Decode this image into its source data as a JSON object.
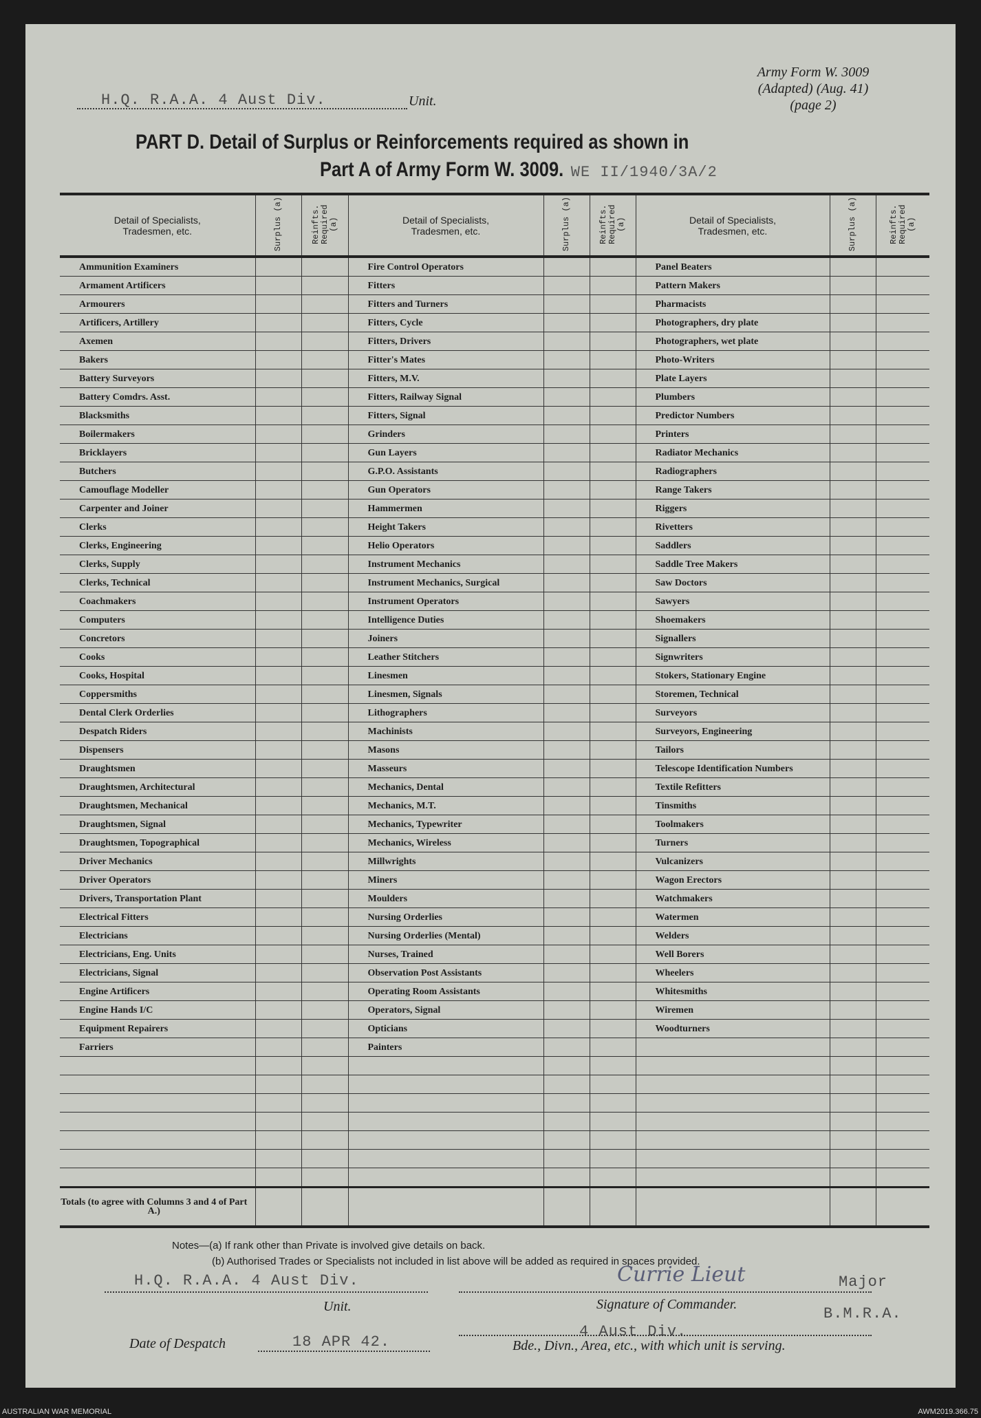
{
  "header": {
    "unit_typed": "H.Q. R.A.A. 4 Aust Div.",
    "unit_label": "Unit.",
    "form_ref_line1": "Army Form W. 3009",
    "form_ref_line2": "(Adapted) (Aug. 41)",
    "form_ref_line3": "(page 2)",
    "title_line1": "PART D.  Detail of Surplus or Reinforcements required as shown in",
    "title_line2": "Part A of Army Form W. 3009.",
    "title_typed": "WE II/1940/3A/2"
  },
  "table": {
    "col_detail": "Detail of Specialists, Tradesmen, etc.",
    "col_surplus": "Surplus (a)",
    "col_reinfts": "Reinfts. Required (a)",
    "columns": [
      [
        "Ammunition Examiners",
        "Armament Artificers",
        "Armourers",
        "Artificers, Artillery",
        "Axemen",
        "Bakers",
        "Battery Surveyors",
        "Battery Comdrs. Asst.",
        "Blacksmiths",
        "Boilermakers",
        "Bricklayers",
        "Butchers",
        "Camouflage Modeller",
        "Carpenter and Joiner",
        "Clerks",
        "Clerks, Engineering",
        "Clerks, Supply",
        "Clerks, Technical",
        "Coachmakers",
        "Computers",
        "Concretors",
        "Cooks",
        "Cooks, Hospital",
        "Coppersmiths",
        "Dental Clerk Orderlies",
        "Despatch Riders",
        "Dispensers",
        "Draughtsmen",
        "Draughtsmen, Architectural",
        "Draughtsmen, Mechanical",
        "Draughtsmen, Signal",
        "Draughtsmen, Topographical",
        "Driver Mechanics",
        "Driver Operators",
        "Drivers, Transportation Plant",
        "Electrical Fitters",
        "Electricians",
        "Electricians, Eng. Units",
        "Electricians, Signal",
        "Engine Artificers",
        "Engine Hands I/C",
        "Equipment Repairers",
        "Farriers"
      ],
      [
        "Fire Control Operators",
        "Fitters",
        "Fitters and Turners",
        "Fitters, Cycle",
        "Fitters, Drivers",
        "Fitter's Mates",
        "Fitters, M.V.",
        "Fitters, Railway Signal",
        "Fitters, Signal",
        "Grinders",
        "Gun Layers",
        "G.P.O. Assistants",
        "Gun Operators",
        "Hammermen",
        "Height Takers",
        "Helio Operators",
        "Instrument Mechanics",
        "Instrument Mechanics, Surgical",
        "Instrument Operators",
        "Intelligence Duties",
        "Joiners",
        "Leather Stitchers",
        "Linesmen",
        "Linesmen, Signals",
        "Lithographers",
        "Machinists",
        "Masons",
        "Masseurs",
        "Mechanics, Dental",
        "Mechanics, M.T.",
        "Mechanics, Typewriter",
        "Mechanics, Wireless",
        "Millwrights",
        "Miners",
        "Moulders",
        "Nursing Orderlies",
        "Nursing Orderlies (Mental)",
        "Nurses, Trained",
        "Observation Post Assistants",
        "Operating Room Assistants",
        "Operators, Signal",
        "Opticians",
        "Painters"
      ],
      [
        "Panel Beaters",
        "Pattern Makers",
        "Pharmacists",
        "Photographers, dry plate",
        "Photographers, wet plate",
        "Photo-Writers",
        "Plate Layers",
        "Plumbers",
        "Predictor Numbers",
        "Printers",
        "Radiator Mechanics",
        "Radiographers",
        "Range Takers",
        "Riggers",
        "Rivetters",
        "Saddlers",
        "Saddle Tree Makers",
        "Saw Doctors",
        "Sawyers",
        "Shoemakers",
        "Signallers",
        "Signwriters",
        "Stokers, Stationary Engine",
        "Storemen, Technical",
        "Surveyors",
        "Surveyors, Engineering",
        "Tailors",
        "Telescope Identification Numbers",
        "Textile Refitters",
        "Tinsmiths",
        "Toolmakers",
        "Turners",
        "Vulcanizers",
        "Wagon Erectors",
        "Watchmakers",
        "Watermen",
        "Welders",
        "Well Borers",
        "Wheelers",
        "Whitesmiths",
        "Wiremen",
        "Woodturners"
      ]
    ],
    "totals_label": "Totals (to agree with Columns 3 and 4 of Part A.)"
  },
  "notes": {
    "a": "Notes—(a) If rank other than Private is involved give details on back.",
    "b": "(b) Authorised Trades or Specialists not included in list above will be added as required in spaces provided."
  },
  "footer_form": {
    "unit_typed": "H.Q. R.A.A. 4 Aust Div.",
    "unit_label": "Unit.",
    "signature_handwritten": "Currie Lieut",
    "signature_rank_typed": "Major",
    "signature_label": "Signature of Commander.",
    "signature_title_typed": "B.M.R.A.",
    "date_label": "Date of Despatch",
    "date_typed": "18 APR 42.",
    "formation_typed": "4 Aust Div.",
    "formation_label": "Bde., Divn., Area, etc., with which unit is serving."
  },
  "credits": {
    "left": "AUSTRALIAN WAR MEMORIAL",
    "right": "AWM2019.366.75"
  }
}
